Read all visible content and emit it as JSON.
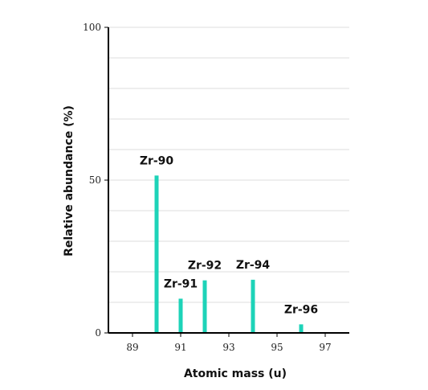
{
  "chart_data": {
    "type": "bar",
    "xlabel": "Atomic mass (u)",
    "ylabel": "Relative abundance (%)",
    "xlim": [
      88,
      98
    ],
    "ylim": [
      0,
      100
    ],
    "x_ticks": [
      "89",
      "91",
      "93",
      "95",
      "97"
    ],
    "x_tick_values": [
      89,
      91,
      93,
      95,
      97
    ],
    "y_ticks": [
      "0",
      "50",
      "100"
    ],
    "y_tick_values": [
      0,
      50,
      100
    ],
    "grid": "horizontal",
    "bars": [
      {
        "label": "Zr-90",
        "x": 90,
        "value": 51.5
      },
      {
        "label": "Zr-91",
        "x": 91,
        "value": 11.2
      },
      {
        "label": "Zr-92",
        "x": 92,
        "value": 17.2
      },
      {
        "label": "Zr-94",
        "x": 94,
        "value": 17.4
      },
      {
        "label": "Zr-96",
        "x": 96,
        "value": 2.8
      }
    ],
    "bar_color": "#1dd3b8"
  }
}
